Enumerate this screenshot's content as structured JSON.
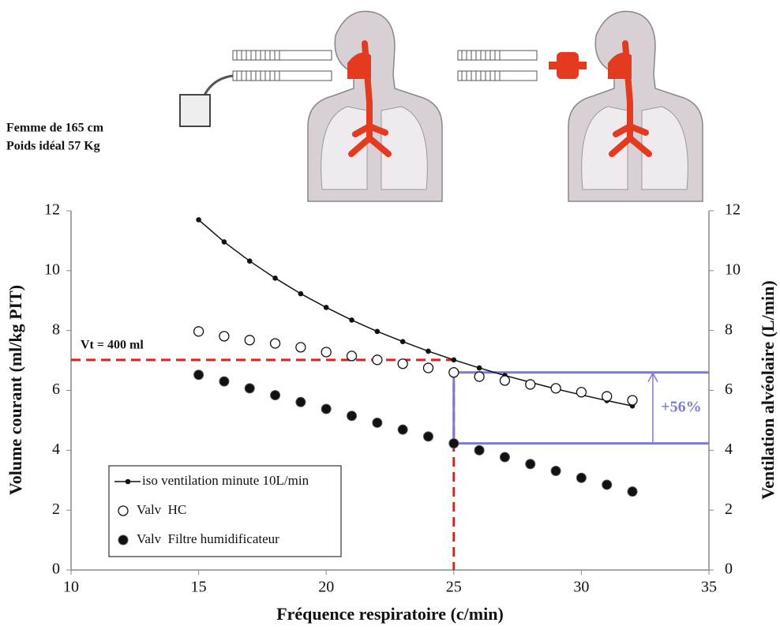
{
  "chart_data": {
    "type": "line",
    "notes": [
      "Femme de 165 cm",
      "Poids idéal 57 Kg"
    ],
    "x_label": "Fréquence respiratoire (c/min)",
    "y_label": "Volume courant (ml/kg PIT)",
    "y2_label": "Ventilation alvéolaire (L/min)",
    "x": [
      15,
      16,
      17,
      18,
      19,
      20,
      21,
      22,
      23,
      24,
      25,
      26,
      27,
      28,
      29,
      30,
      31,
      32
    ],
    "series": [
      {
        "name": "iso ventilation minute 10L/min",
        "color": "#111111",
        "marker": "dot-line",
        "values": [
          11.7,
          10.96,
          10.32,
          9.75,
          9.23,
          8.77,
          8.35,
          7.97,
          7.63,
          7.31,
          7.02,
          6.75,
          6.5,
          6.27,
          6.05,
          5.85,
          5.66,
          5.48
        ]
      },
      {
        "name": "Valv  HC",
        "color": "#111111",
        "marker": "open-circle",
        "values": [
          7.97,
          7.81,
          7.68,
          7.57,
          7.44,
          7.28,
          7.15,
          7.02,
          6.89,
          6.75,
          6.6,
          6.46,
          6.33,
          6.2,
          6.07,
          5.94,
          5.8,
          5.67
        ]
      },
      {
        "name": "Valv  Filtre humidificateur",
        "color": "#111111",
        "marker": "filled-circle",
        "values": [
          6.52,
          6.3,
          6.07,
          5.84,
          5.61,
          5.38,
          5.15,
          4.92,
          4.69,
          4.46,
          4.23,
          4.0,
          3.77,
          3.54,
          3.31,
          3.08,
          2.85,
          2.62
        ]
      }
    ],
    "xlim": [
      10,
      35
    ],
    "xticks": [
      10,
      15,
      20,
      25,
      30,
      35
    ],
    "ylim": [
      0,
      12
    ],
    "yticks": [
      0,
      2,
      4,
      6,
      8,
      10,
      12
    ],
    "y2lim": [
      0,
      12
    ],
    "y2ticks": [
      0,
      2,
      4,
      6,
      8,
      10,
      12
    ],
    "annotations": [
      {
        "text": "Vt = 400 ml",
        "x": 25,
        "y": 7.02,
        "color": "#e02020"
      },
      {
        "text": "+56%",
        "x": 32.8,
        "y_from": 4.23,
        "y_to": 6.6,
        "color": "#7b7bd0"
      }
    ],
    "legend": "lower left"
  }
}
